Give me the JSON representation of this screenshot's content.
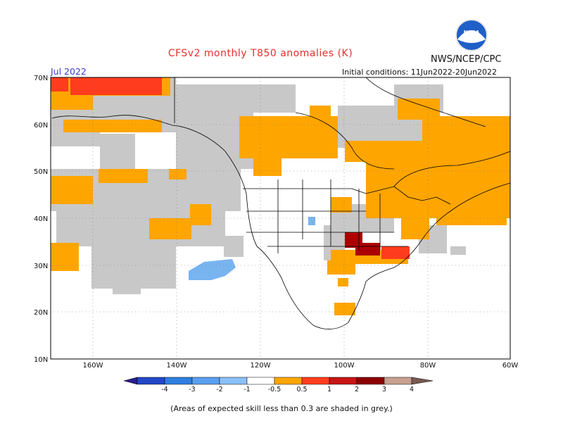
{
  "title": "CFSv2 monthly T850 anomalies (K)",
  "agency": "NWS/NCEP/CPC",
  "logo_text": "NOAA",
  "month": "Jul 2022",
  "initial_conditions": "Initial conditions: 11Jun2022-20Jun2022",
  "footnote": "(Areas of expected skill less than 0.3 are shaded in grey.)",
  "axes": {
    "lat_labels": [
      "70N",
      "60N",
      "50N",
      "40N",
      "30N",
      "20N",
      "10N"
    ],
    "lon_labels": [
      "160W",
      "140W",
      "120W",
      "100W",
      "80W",
      "60W"
    ]
  },
  "colors": {
    "grey_low_skill": "#c8c8c8",
    "orange_0_5_to_1": "#ffa500",
    "red_1_to_2": "#ff3c1e",
    "darkred_2_to_3": "#aa0000",
    "lightblue_-1_to_-0_5": "#78b4f0",
    "blue_-2_to_-1": "#3c8cf0"
  },
  "colorbar": {
    "labels": [
      "-4",
      "-3",
      "-2",
      "-1",
      "-0.5",
      "0.5",
      "1",
      "2",
      "3",
      "4"
    ],
    "colors": [
      "#2a1e8e",
      "#2348c8",
      "#2e7fe0",
      "#5aa0f0",
      "#8cc0f8",
      "#ffffff",
      "#ffa500",
      "#ff3c1e",
      "#c81414",
      "#8c0000",
      "#c8a090",
      "#785a50"
    ]
  }
}
